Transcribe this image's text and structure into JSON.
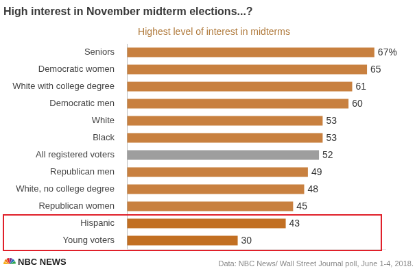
{
  "chart_data": {
    "type": "bar",
    "orientation": "horizontal",
    "title": "High interest in November midterm elections...?",
    "subtitle": "Highest level of interest in midterms",
    "categories": [
      "Seniors",
      "Democratic women",
      "White with college degree",
      "Democratic men",
      "White",
      "Black",
      "All registered voters",
      "Republican men",
      "White, no college degree",
      "Republican women",
      "Hispanic",
      "Young voters"
    ],
    "values": [
      67,
      65,
      61,
      60,
      53,
      53,
      52,
      49,
      48,
      45,
      43,
      30
    ],
    "value_labels": [
      "67%",
      "65",
      "61",
      "60",
      "53",
      "53",
      "52",
      "49",
      "48",
      "45",
      "43",
      "30"
    ],
    "colors": [
      "#c8803f",
      "#c8803f",
      "#c8803f",
      "#c8803f",
      "#c8803f",
      "#c8803f",
      "#9e9e9e",
      "#c8803f",
      "#c8803f",
      "#c8803f",
      "#c26f22",
      "#c26f22"
    ],
    "xlim": [
      0,
      70
    ],
    "xticks": [
      0
    ],
    "grid": true,
    "data_labels": true,
    "tick_labels": "y",
    "source": "Data: NBC News/ Wall Street Journal poll, June 1-4, 2018.",
    "credit": "NBC NEWS"
  }
}
